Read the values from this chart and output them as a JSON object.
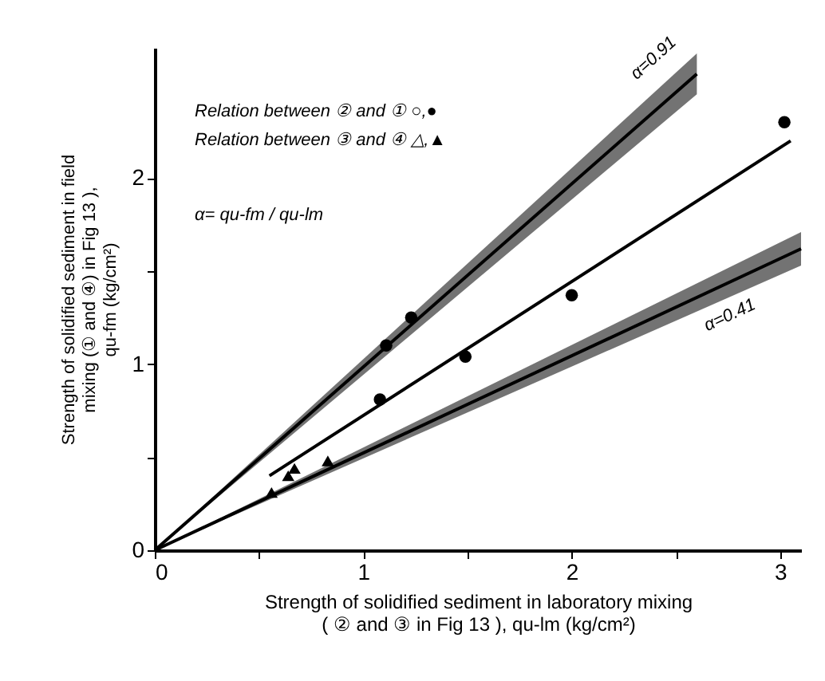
{
  "chart_data": {
    "type": "scatter",
    "xlabel": "Strength of solidified sediment in laboratory mixing\n( ② and ③ in Fig 13 ), qu-lm (kg/cm²)",
    "ylabel": "Strength of solidified sediment in field\nmixing (① and ④) in Fig 13 ),\nqu-fm (kg/cm²)",
    "xlim": [
      0,
      3.1
    ],
    "ylim": [
      0,
      2.7
    ],
    "xticks": [
      0,
      {
        "value": 0.5,
        "label": null
      },
      1,
      {
        "value": 1.5,
        "label": null
      },
      2,
      {
        "value": 2.5,
        "label": null
      },
      3
    ],
    "yticks": [
      0,
      {
        "value": 0.5,
        "label": null
      },
      1,
      {
        "value": 1.5,
        "label": null
      },
      2
    ],
    "grid": false,
    "series": [
      {
        "type": "line",
        "color": "#000000",
        "x": [
          0,
          2.6
        ],
        "values": [
          0,
          2.56
        ],
        "lower": [
          0,
          2.45
        ],
        "upper": [
          0,
          2.67
        ],
        "marker": "none"
      },
      {
        "type": "line",
        "color": "#000000",
        "x": [
          0,
          3.1
        ],
        "values": [
          0,
          1.62
        ],
        "lower": [
          0,
          1.53
        ],
        "upper": [
          0,
          1.71
        ],
        "marker": "none"
      },
      {
        "type": "line",
        "color": "#000000",
        "x": [
          0.55,
          3.05
        ],
        "values": [
          0.4,
          2.2
        ],
        "marker": "none"
      },
      {
        "color": "#000000",
        "marker": "circle",
        "x": [
          1.08,
          1.11,
          1.23
        ],
        "values": [
          0.81,
          1.1,
          1.25
        ]
      },
      {
        "color": "#000000",
        "marker": "circle",
        "x": [
          1.49,
          2.0,
          3.02
        ],
        "values": [
          1.04,
          1.37,
          2.3
        ]
      },
      {
        "color": "#000000",
        "marker": "triangle",
        "x": [
          0.56,
          0.64,
          0.67,
          0.83
        ],
        "values": [
          0.31,
          0.4,
          0.44,
          0.48
        ]
      }
    ],
    "annotations": [
      "Relation between ② and ① ○,●",
      "Relation between ③ and ④ △,▲",
      "α= qu-fm / qu-lm",
      "α=0.91",
      "α=0.41"
    ]
  }
}
